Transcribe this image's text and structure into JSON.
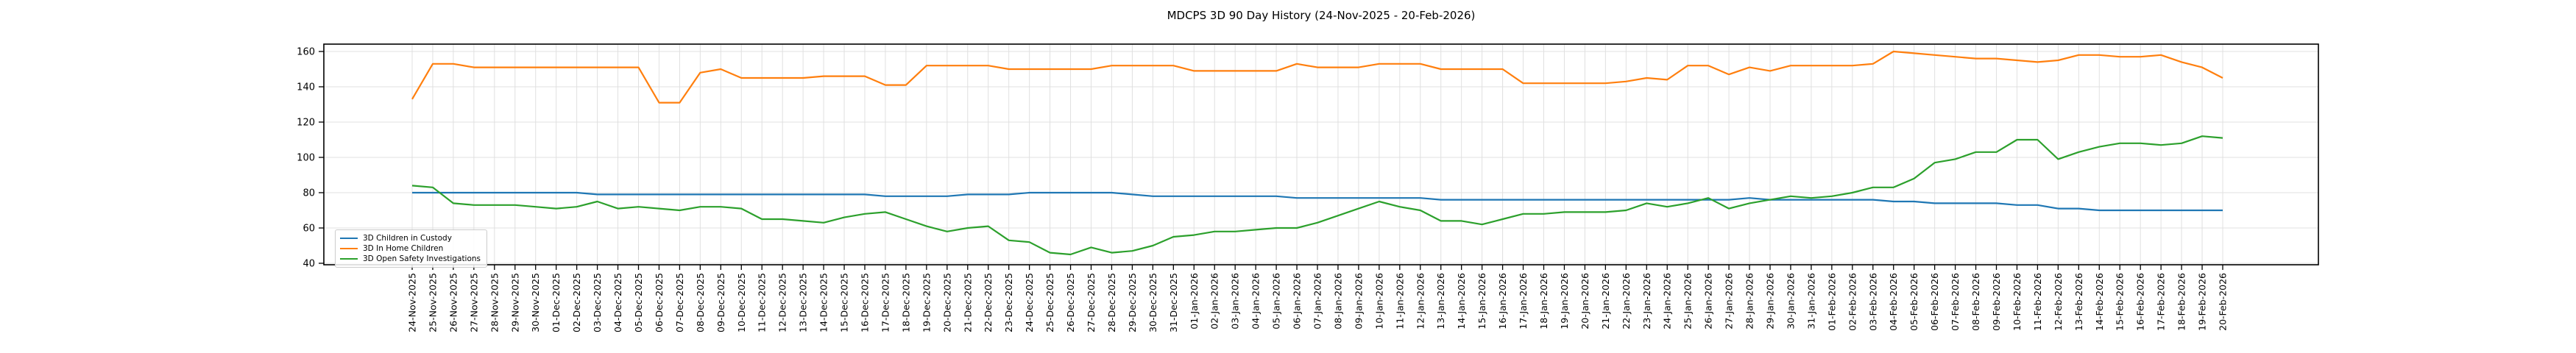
{
  "chart_data": {
    "type": "line",
    "title": "MDCPS 3D 90 Day History (24-Nov-2025 - 20-Feb-2026)",
    "grid": true,
    "legend_position": "lower left",
    "ylim": [
      40,
      160
    ],
    "yticks": [
      40,
      60,
      80,
      100,
      120,
      140,
      160
    ],
    "x": [
      "24-Nov-2025",
      "25-Nov-2025",
      "26-Nov-2025",
      "27-Nov-2025",
      "28-Nov-2025",
      "29-Nov-2025",
      "30-Nov-2025",
      "01-Dec-2025",
      "02-Dec-2025",
      "03-Dec-2025",
      "04-Dec-2025",
      "05-Dec-2025",
      "06-Dec-2025",
      "07-Dec-2025",
      "08-Dec-2025",
      "09-Dec-2025",
      "10-Dec-2025",
      "11-Dec-2025",
      "12-Dec-2025",
      "13-Dec-2025",
      "14-Dec-2025",
      "15-Dec-2025",
      "16-Dec-2025",
      "17-Dec-2025",
      "18-Dec-2025",
      "19-Dec-2025",
      "20-Dec-2025",
      "21-Dec-2025",
      "22-Dec-2025",
      "23-Dec-2025",
      "24-Dec-2025",
      "25-Dec-2025",
      "26-Dec-2025",
      "27-Dec-2025",
      "28-Dec-2025",
      "29-Dec-2025",
      "30-Dec-2025",
      "31-Dec-2025",
      "01-Jan-2026",
      "02-Jan-2026",
      "03-Jan-2026",
      "04-Jan-2026",
      "05-Jan-2026",
      "06-Jan-2026",
      "07-Jan-2026",
      "08-Jan-2026",
      "09-Jan-2026",
      "10-Jan-2026",
      "11-Jan-2026",
      "12-Jan-2026",
      "13-Jan-2026",
      "14-Jan-2026",
      "15-Jan-2026",
      "16-Jan-2026",
      "17-Jan-2026",
      "18-Jan-2026",
      "19-Jan-2026",
      "20-Jan-2026",
      "21-Jan-2026",
      "22-Jan-2026",
      "23-Jan-2026",
      "24-Jan-2026",
      "25-Jan-2026",
      "26-Jan-2026",
      "27-Jan-2026",
      "28-Jan-2026",
      "29-Jan-2026",
      "30-Jan-2026",
      "31-Jan-2026",
      "01-Feb-2026",
      "02-Feb-2026",
      "03-Feb-2026",
      "04-Feb-2026",
      "05-Feb-2026",
      "06-Feb-2026",
      "07-Feb-2026",
      "08-Feb-2026",
      "09-Feb-2026",
      "10-Feb-2026",
      "11-Feb-2026",
      "12-Feb-2026",
      "13-Feb-2026",
      "14-Feb-2026",
      "15-Feb-2026",
      "16-Feb-2026",
      "17-Feb-2026",
      "18-Feb-2026",
      "19-Feb-2026",
      "20-Feb-2026"
    ],
    "series": [
      {
        "name": "3D Children in Custody",
        "color": "#1f77b4",
        "values": [
          80,
          80,
          80,
          80,
          80,
          80,
          80,
          80,
          80,
          79,
          79,
          79,
          79,
          79,
          79,
          79,
          79,
          79,
          79,
          79,
          79,
          79,
          79,
          78,
          78,
          78,
          78,
          79,
          79,
          79,
          80,
          80,
          80,
          80,
          80,
          79,
          78,
          78,
          78,
          78,
          78,
          78,
          78,
          77,
          77,
          77,
          77,
          77,
          77,
          77,
          76,
          76,
          76,
          76,
          76,
          76,
          76,
          76,
          76,
          76,
          76,
          76,
          76,
          76,
          76,
          77,
          76,
          76,
          76,
          76,
          76,
          76,
          75,
          75,
          74,
          74,
          74,
          74,
          73,
          73,
          71,
          71,
          70,
          70,
          70,
          70,
          70,
          70,
          70
        ]
      },
      {
        "name": "3D In Home Children",
        "color": "#ff7f0e",
        "values": [
          133,
          153,
          153,
          151,
          151,
          151,
          151,
          151,
          151,
          151,
          151,
          151,
          131,
          131,
          148,
          150,
          145,
          145,
          145,
          145,
          146,
          146,
          146,
          141,
          141,
          152,
          152,
          152,
          152,
          150,
          150,
          150,
          150,
          150,
          152,
          152,
          152,
          152,
          149,
          149,
          149,
          149,
          149,
          153,
          151,
          151,
          151,
          153,
          153,
          153,
          150,
          150,
          150,
          150,
          142,
          142,
          142,
          142,
          142,
          143,
          145,
          144,
          152,
          152,
          147,
          151,
          149,
          152,
          152,
          152,
          152,
          153,
          160,
          159,
          158,
          157,
          156,
          156,
          155,
          154,
          155,
          158,
          158,
          157,
          157,
          158,
          154,
          151,
          145
        ]
      },
      {
        "name": "3D Open Safety Investigations",
        "color": "#2ca02c",
        "values": [
          84,
          83,
          74,
          73,
          73,
          73,
          72,
          71,
          72,
          75,
          71,
          72,
          71,
          70,
          72,
          72,
          71,
          65,
          65,
          64,
          63,
          66,
          68,
          69,
          65,
          61,
          58,
          60,
          61,
          53,
          52,
          46,
          45,
          49,
          46,
          47,
          50,
          55,
          56,
          58,
          58,
          59,
          60,
          60,
          63,
          67,
          71,
          75,
          72,
          70,
          64,
          64,
          62,
          65,
          68,
          68,
          69,
          69,
          69,
          70,
          74,
          72,
          74,
          77,
          71,
          74,
          76,
          78,
          77,
          78,
          80,
          83,
          83,
          88,
          97,
          99,
          103,
          103,
          110,
          110,
          99,
          103,
          106,
          108,
          108,
          107,
          108,
          112,
          111
        ]
      }
    ]
  }
}
